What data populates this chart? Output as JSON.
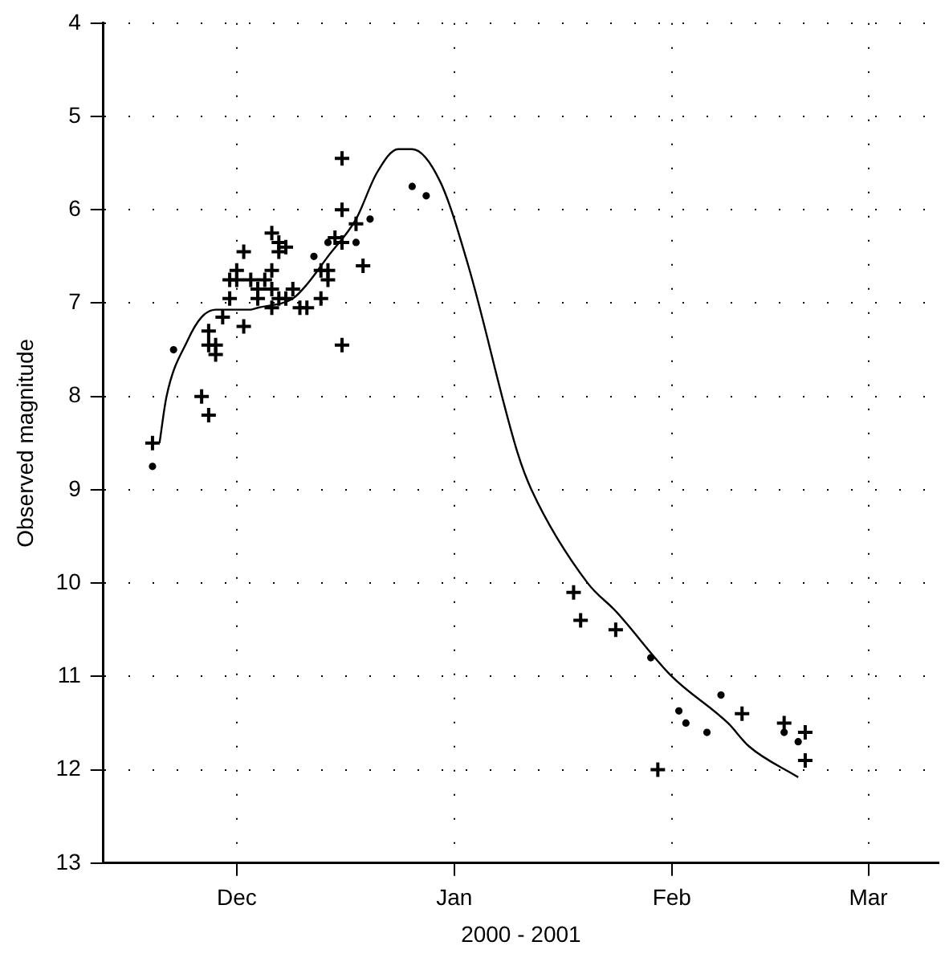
{
  "chart_data": {
    "type": "scatter",
    "xlabel": "2000 - 2001",
    "ylabel": "Observed magnitude",
    "xlim": [
      "2000-11-12",
      "2001-03-11"
    ],
    "xticks": [
      {
        "value": "2000-12-01",
        "label": "Dec"
      },
      {
        "value": "2001-01-01",
        "label": "Jan"
      },
      {
        "value": "2001-02-01",
        "label": "Feb"
      },
      {
        "value": "2001-03-01",
        "label": "Mar"
      }
    ],
    "ylim": [
      13,
      4
    ],
    "yticks": [
      4,
      5,
      6,
      7,
      8,
      9,
      10,
      11,
      12,
      13
    ],
    "grid": true,
    "legend": false,
    "series": [
      {
        "type": "line",
        "color": "#000000",
        "marker": "none",
        "line_style": "solid",
        "x": [
          "2000-11-20",
          "2000-11-21",
          "2000-11-24",
          "2000-11-26",
          "2000-11-28",
          "2000-12-03",
          "2000-12-04",
          "2000-12-09",
          "2000-12-11",
          "2000-12-14",
          "2000-12-18",
          "2000-12-21",
          "2000-12-24",
          "2000-12-26",
          "2000-12-30",
          "2001-01-03",
          "2001-01-10",
          "2001-01-12",
          "2001-01-20",
          "2001-01-24",
          "2001-02-01",
          "2001-02-09",
          "2001-02-12",
          "2001-02-19"
        ],
        "values": [
          8.5,
          8.0,
          7.4,
          7.15,
          7.07,
          7.07,
          7.05,
          6.95,
          6.8,
          6.5,
          6.1,
          5.6,
          5.35,
          5.35,
          5.7,
          6.6,
          8.6,
          9.0,
          10.0,
          10.3,
          11.0,
          11.5,
          11.75,
          12.08
        ]
      },
      {
        "type": "scatter",
        "color": "#000000",
        "marker": "cross",
        "x": [
          "2000-11-19",
          "2000-11-26",
          "2000-11-27",
          "2000-11-27",
          "2000-11-27",
          "2000-11-28",
          "2000-11-28",
          "2000-11-29",
          "2000-11-30",
          "2000-12-02",
          "2000-12-02",
          "2000-12-01",
          "2000-11-30",
          "2000-12-01",
          "2000-12-03",
          "2000-12-05",
          "2000-12-04",
          "2000-12-04",
          "2000-12-06",
          "2000-12-06",
          "2000-12-07",
          "2000-12-08",
          "2000-12-06",
          "2000-12-07",
          "2000-12-07",
          "2000-12-08",
          "2000-12-09",
          "2000-12-10",
          "2000-12-11",
          "2000-12-13",
          "2000-12-13",
          "2000-12-14",
          "2000-12-14",
          "2000-12-15",
          "2000-12-16",
          "2000-12-16",
          "2000-12-18",
          "2000-12-16",
          "2000-12-16",
          "2000-12-19",
          "2000-12-06",
          "2001-01-18",
          "2001-01-19",
          "2001-01-24",
          "2001-01-30",
          "2001-02-11",
          "2001-02-17",
          "2001-02-20",
          "2001-02-20"
        ],
        "values": [
          8.5,
          8.0,
          8.2,
          7.3,
          7.45,
          7.45,
          7.55,
          7.15,
          6.95,
          7.25,
          6.45,
          6.65,
          6.75,
          6.75,
          6.75,
          6.75,
          6.85,
          6.95,
          6.65,
          6.85,
          6.95,
          6.95,
          6.25,
          6.35,
          6.45,
          6.4,
          6.85,
          7.05,
          7.05,
          6.95,
          6.65,
          6.65,
          6.75,
          6.3,
          6.35,
          6.0,
          6.15,
          5.45,
          7.45,
          6.6,
          7.05,
          10.1,
          10.4,
          10.5,
          12.0,
          11.4,
          11.5,
          11.6,
          11.9
        ]
      },
      {
        "type": "scatter",
        "color": "#000000",
        "marker": "circle",
        "x": [
          "2000-11-19",
          "2000-11-22",
          "2000-12-12",
          "2000-12-14",
          "2000-12-18",
          "2000-12-20",
          "2000-12-26",
          "2000-12-28",
          "2001-01-29",
          "2001-02-02",
          "2001-02-03",
          "2001-02-06",
          "2001-02-08",
          "2001-02-17",
          "2001-02-19"
        ],
        "values": [
          8.75,
          7.5,
          6.5,
          6.35,
          6.35,
          6.1,
          5.75,
          5.85,
          10.8,
          11.37,
          11.5,
          11.6,
          11.2,
          11.6,
          11.7
        ]
      }
    ]
  }
}
